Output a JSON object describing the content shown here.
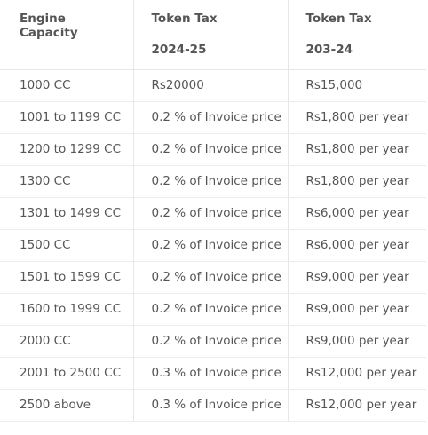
{
  "table": {
    "headers": [
      {
        "line1": "Engine Capacity",
        "line2": ""
      },
      {
        "line1": "Token Tax",
        "line2": "2024-25"
      },
      {
        "line1": "Token Tax",
        "line2": "203-24"
      }
    ],
    "rows": [
      [
        "1000 CC",
        "Rs20000",
        "Rs15,000"
      ],
      [
        "1001 to 1199 CC",
        "0.2 % of Invoice price",
        "Rs1,800 per year"
      ],
      [
        "1200 to 1299 CC",
        "0.2 % of Invoice price",
        "Rs1,800 per year"
      ],
      [
        "1300 CC",
        "0.2 % of Invoice price",
        "Rs1,800 per year"
      ],
      [
        "1301 to 1499 CC",
        "0.2 % of Invoice price",
        "Rs6,000 per year"
      ],
      [
        "1500 CC",
        "0.2 % of Invoice price",
        "Rs6,000 per year"
      ],
      [
        "1501 to 1599 CC",
        "0.2 % of Invoice price",
        "Rs9,000 per year"
      ],
      [
        "1600 to 1999 CC",
        "0.2 % of Invoice price",
        "Rs9,000 per year"
      ],
      [
        "2000 CC",
        "0.2 % of Invoice price",
        "Rs9,000 per year"
      ],
      [
        "2001 to 2500 CC",
        "0.3 % of Invoice price",
        "Rs12,000 per year"
      ],
      [
        "2500 above",
        "0.3 % of Invoice price",
        "Rs12,000 per year"
      ]
    ]
  }
}
